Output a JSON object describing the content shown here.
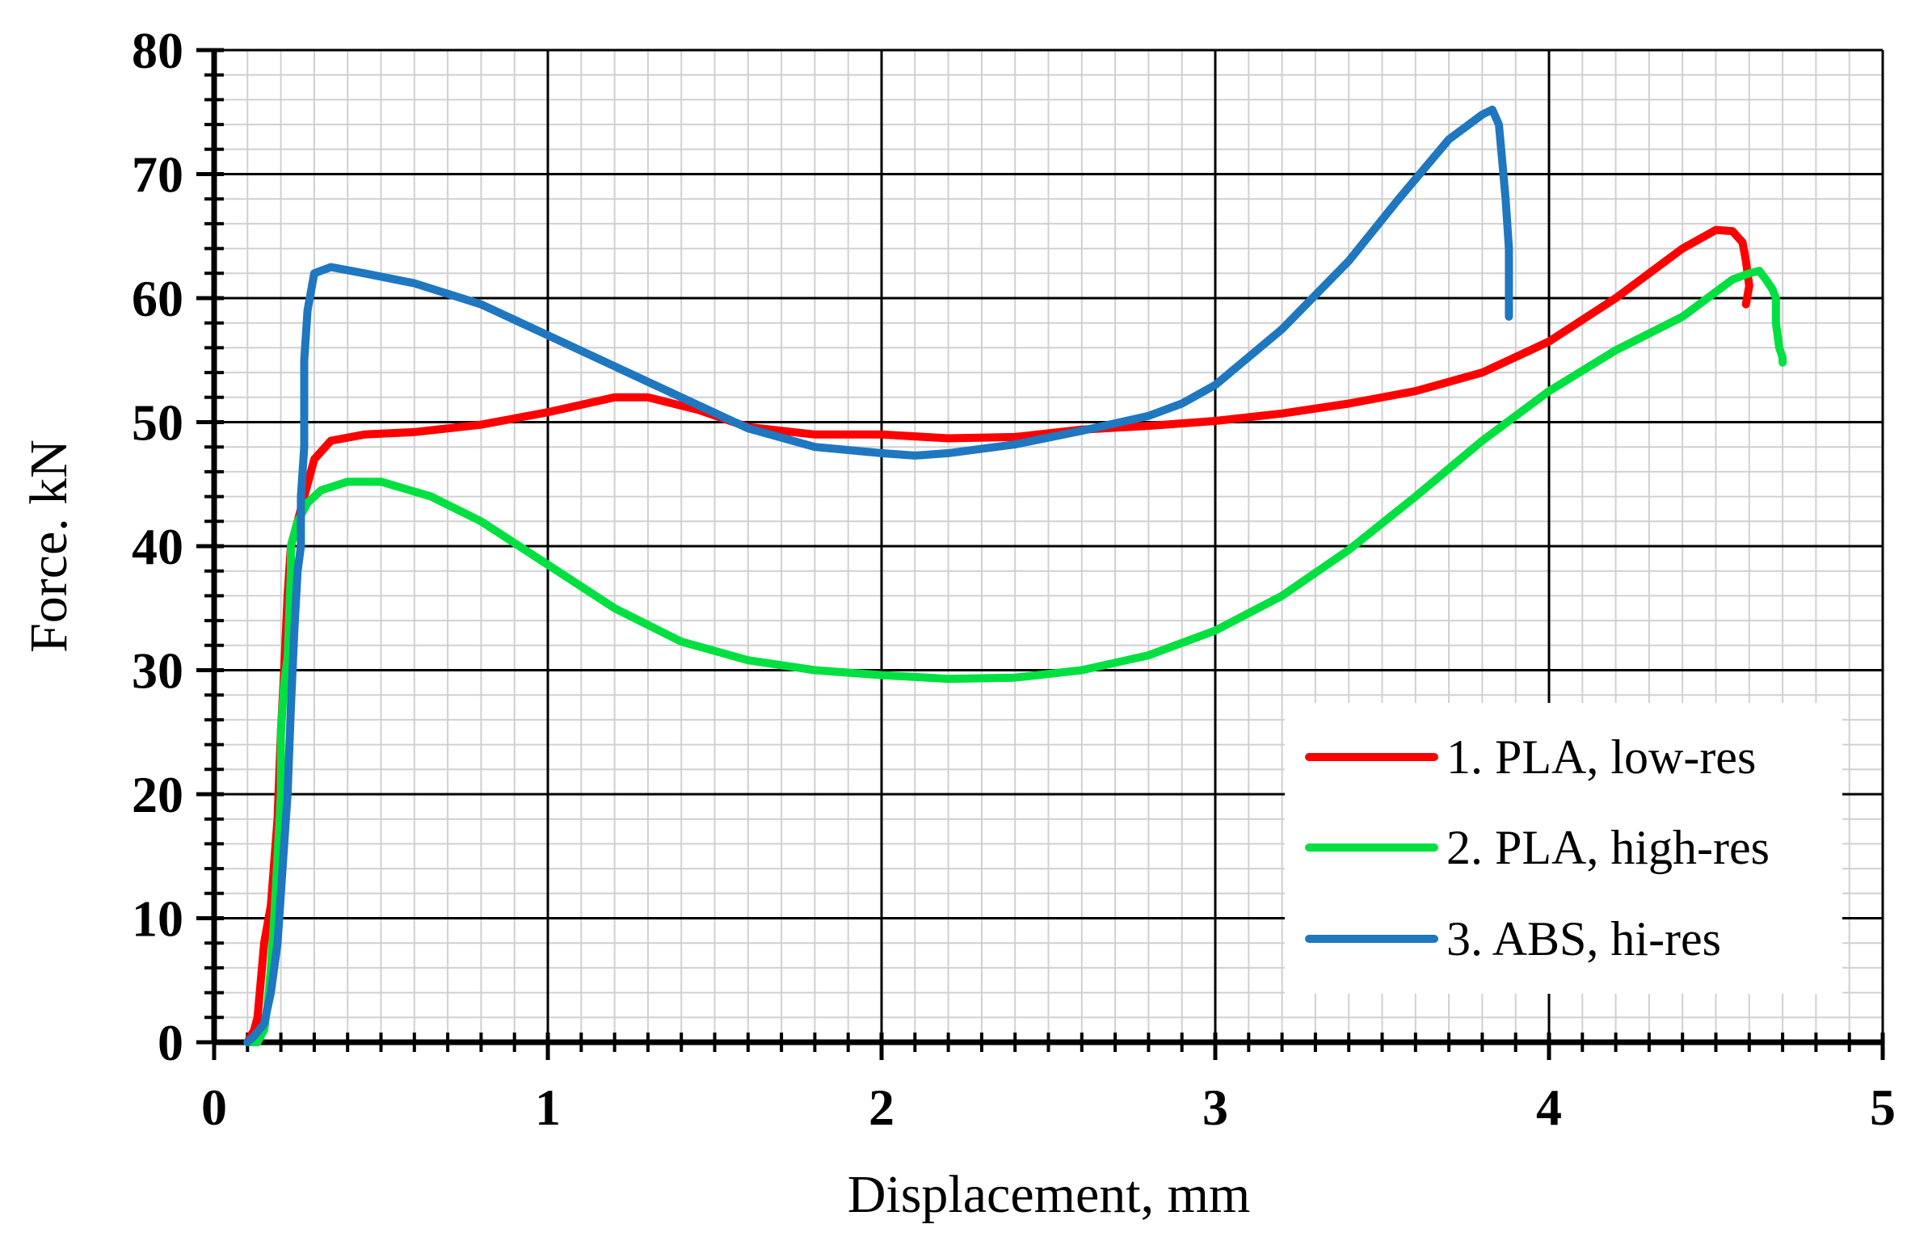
{
  "chart_data": {
    "type": "line",
    "title": "",
    "xlabel": "Displacement,  mm",
    "ylabel": "Force. kN",
    "xlim": [
      0,
      5
    ],
    "ylim": [
      0,
      80
    ],
    "xticks": [
      0,
      1,
      2,
      3,
      4,
      5
    ],
    "yticks": [
      0,
      10,
      20,
      30,
      40,
      50,
      60,
      70,
      80
    ],
    "x_minor_step": 0.1,
    "y_minor_step": 2,
    "grid": true,
    "legend_position": "bottom-right",
    "series": [
      {
        "name": "1. PLA, low-res",
        "color": "#ff0000",
        "x": [
          0.1,
          0.12,
          0.13,
          0.14,
          0.15,
          0.17,
          0.19,
          0.2,
          0.21,
          0.22,
          0.23,
          0.25,
          0.27,
          0.3,
          0.35,
          0.45,
          0.6,
          0.8,
          1.0,
          1.2,
          1.3,
          1.45,
          1.6,
          1.8,
          2.0,
          2.2,
          2.4,
          2.6,
          2.8,
          3.0,
          3.2,
          3.4,
          3.6,
          3.8,
          4.0,
          4.2,
          4.4,
          4.5,
          4.55,
          4.58,
          4.59,
          4.6,
          4.59
        ],
        "y": [
          0,
          1,
          2,
          5,
          8,
          11,
          18,
          25,
          30,
          36,
          40,
          42,
          44,
          47,
          48.5,
          49,
          49.2,
          49.8,
          50.8,
          52,
          52,
          51,
          49.6,
          49,
          49,
          48.7,
          48.8,
          49.4,
          49.7,
          50.1,
          50.7,
          51.5,
          52.5,
          54,
          56.5,
          60,
          64,
          65.5,
          65.4,
          64.5,
          63,
          61,
          59.5
        ]
      },
      {
        "name": "2. PLA, high-res",
        "color": "#00e040",
        "x": [
          0.1,
          0.13,
          0.15,
          0.16,
          0.17,
          0.18,
          0.19,
          0.2,
          0.2,
          0.21,
          0.22,
          0.23,
          0.23,
          0.25,
          0.28,
          0.32,
          0.4,
          0.5,
          0.65,
          0.8,
          1.0,
          1.2,
          1.4,
          1.6,
          1.8,
          2.0,
          2.2,
          2.4,
          2.6,
          2.8,
          3.0,
          3.2,
          3.4,
          3.6,
          3.8,
          4.0,
          4.2,
          4.4,
          4.5,
          4.55,
          4.6,
          4.63,
          4.65,
          4.67,
          4.68,
          4.68,
          4.69,
          4.7,
          4.7
        ],
        "y": [
          0,
          0,
          1,
          3,
          6,
          10,
          15,
          20,
          25,
          29,
          31,
          38,
          40,
          42,
          43.5,
          44.5,
          45.2,
          45.2,
          44,
          42,
          38.5,
          35,
          32.3,
          30.8,
          30,
          29.6,
          29.3,
          29.4,
          30,
          31.2,
          33.2,
          36,
          39.7,
          44,
          48.5,
          52.5,
          55.8,
          58.5,
          60.5,
          61.5,
          62,
          62.2,
          61.5,
          60.7,
          60,
          58,
          56,
          55.2,
          54.8
        ]
      },
      {
        "name": "3. ABS, hi-res",
        "color": "#1f77c0",
        "x": [
          0.1,
          0.12,
          0.15,
          0.17,
          0.19,
          0.2,
          0.21,
          0.22,
          0.23,
          0.24,
          0.25,
          0.26,
          0.26,
          0.27,
          0.27,
          0.28,
          0.3,
          0.35,
          0.45,
          0.6,
          0.8,
          1.0,
          1.2,
          1.4,
          1.6,
          1.8,
          2.0,
          2.1,
          2.2,
          2.4,
          2.6,
          2.8,
          2.9,
          3.0,
          3.2,
          3.4,
          3.55,
          3.7,
          3.8,
          3.83,
          3.85,
          3.86,
          3.87,
          3.88,
          3.88
        ],
        "y": [
          0,
          0.5,
          1.5,
          4,
          8,
          12,
          16,
          20,
          27,
          33,
          38,
          40,
          44,
          48,
          55,
          59,
          62,
          62.5,
          62,
          61.2,
          59.5,
          57,
          54.5,
          52,
          49.5,
          48,
          47.5,
          47.3,
          47.5,
          48.2,
          49.3,
          50.5,
          51.5,
          53,
          57.5,
          63,
          68,
          72.8,
          74.8,
          75.2,
          74,
          71,
          68,
          64,
          58.5
        ]
      }
    ]
  }
}
